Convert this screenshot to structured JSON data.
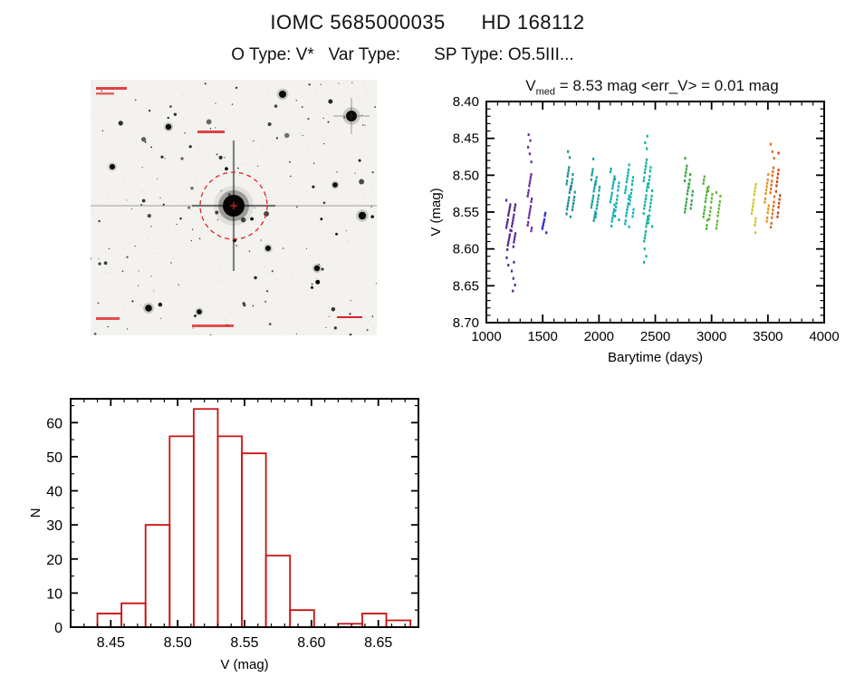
{
  "page": {
    "title": "IOMC 5685000035      HD 168112",
    "subtitle": "O Type: V*   Var Type:       SP Type: O5.5III..."
  },
  "finder_chart": {
    "aperture_color": "#dd2222"
  },
  "chart_data": [
    {
      "type": "scatter",
      "title": {
        "var": "V",
        "sub": "med",
        "rest": " = 8.53 mag <err_V> = 0.01 mag"
      },
      "xlabel": "Barytime (days)",
      "ylabel": "V (mag)",
      "xlim": [
        1000,
        4000
      ],
      "ylim_top": 8.4,
      "ylim_bottom": 8.7,
      "xticks": [
        1000,
        1500,
        2000,
        2500,
        3000,
        3500,
        4000
      ],
      "yticks": [
        8.4,
        8.45,
        8.5,
        8.55,
        8.6,
        8.65,
        8.7
      ],
      "x_minor_step": 100,
      "y_minor_step": 0.01,
      "legend": "none",
      "grid": false,
      "clusters": [
        {
          "x": 1195,
          "color": "#55268f",
          "strip": [
            8.535,
            8.6,
            17
          ],
          "outliers": [
            8.612,
            8.622
          ]
        },
        {
          "x": 1240,
          "color": "#55268f",
          "strip": [
            8.54,
            8.596,
            14
          ],
          "outliers": [
            8.618,
            8.63,
            8.64,
            8.649,
            8.657
          ]
        },
        {
          "x": 1385,
          "color": "#6a2da0",
          "strip": [
            8.498,
            8.576,
            19
          ],
          "outliers": [
            8.445,
            8.453,
            8.462,
            8.471,
            8.482
          ]
        },
        {
          "x": 1515,
          "color": "#2f2fc8",
          "strip": [
            8.552,
            8.577,
            8
          ],
          "outliers": []
        },
        {
          "x": 1730,
          "color": "#1c8f96",
          "strip": [
            8.489,
            8.556,
            16
          ],
          "outliers": [
            8.468,
            8.476
          ]
        },
        {
          "x": 1768,
          "color": "#1c8f96",
          "strip": [
            8.5,
            8.548,
            11
          ],
          "outliers": []
        },
        {
          "x": 1950,
          "color": "#16a0a0",
          "strip": [
            8.492,
            8.562,
            17
          ],
          "outliers": [
            8.478
          ]
        },
        {
          "x": 1988,
          "color": "#16a0a0",
          "strip": [
            8.502,
            8.556,
            12
          ],
          "outliers": []
        },
        {
          "x": 2120,
          "color": "#12adb0",
          "strip": [
            8.492,
            8.568,
            18
          ],
          "outliers": []
        },
        {
          "x": 2160,
          "color": "#12adb0",
          "strip": [
            8.505,
            8.56,
            11
          ],
          "outliers": []
        },
        {
          "x": 2250,
          "color": "#0fb4ae",
          "strip": [
            8.487,
            8.57,
            19
          ],
          "outliers": []
        },
        {
          "x": 2290,
          "color": "#0fb4ae",
          "strip": [
            8.503,
            8.556,
            11
          ],
          "outliers": []
        },
        {
          "x": 2415,
          "color": "#10b39b",
          "strip": [
            8.478,
            8.59,
            24
          ],
          "outliers": [
            8.447,
            8.456,
            8.464,
            8.6,
            8.61,
            8.618
          ]
        },
        {
          "x": 2455,
          "color": "#10b39b",
          "strip": [
            8.49,
            8.57,
            16
          ],
          "outliers": []
        },
        {
          "x": 2780,
          "color": "#35a348",
          "strip": [
            8.487,
            8.551,
            14
          ],
          "outliers": [
            8.477
          ]
        },
        {
          "x": 2815,
          "color": "#35a348",
          "strip": [
            8.5,
            8.545,
            9
          ],
          "outliers": []
        },
        {
          "x": 2945,
          "color": "#4fae3c",
          "strip": [
            8.502,
            8.572,
            15
          ],
          "outliers": []
        },
        {
          "x": 2988,
          "color": "#63b431",
          "strip": [
            8.515,
            8.56,
            9
          ],
          "outliers": []
        },
        {
          "x": 3060,
          "color": "#63b431",
          "strip": [
            8.524,
            8.572,
            10
          ],
          "outliers": []
        },
        {
          "x": 3375,
          "color": "#cfc520",
          "strip": [
            8.512,
            8.568,
            12
          ],
          "outliers": [
            8.578
          ]
        },
        {
          "x": 3490,
          "color": "#e39117",
          "strip": [
            8.5,
            8.562,
            13
          ],
          "outliers": []
        },
        {
          "x": 3540,
          "color": "#dd6b12",
          "strip": [
            8.49,
            8.57,
            15
          ],
          "outliers": [
            8.458,
            8.468,
            8.477
          ]
        },
        {
          "x": 3590,
          "color": "#cf4016",
          "strip": [
            8.492,
            8.556,
            12
          ],
          "outliers": [
            8.47
          ]
        }
      ]
    },
    {
      "type": "bar",
      "title": "",
      "xlabel": "V (mag)",
      "ylabel": "N",
      "bin_start": 8.44,
      "bin_width": 0.018,
      "counts": [
        4,
        7,
        30,
        56,
        64,
        56,
        51,
        21,
        5,
        0,
        1,
        4,
        2
      ],
      "xlim": [
        8.42,
        8.68
      ],
      "ylim": [
        0,
        67
      ],
      "xticks": [
        8.45,
        8.5,
        8.55,
        8.6,
        8.65
      ],
      "yticks": [
        0,
        10,
        20,
        30,
        40,
        50,
        60
      ],
      "x_minor_step": 0.01,
      "y_minor_step": 5,
      "color": "#cc1111",
      "grid": false,
      "legend": "none"
    }
  ]
}
